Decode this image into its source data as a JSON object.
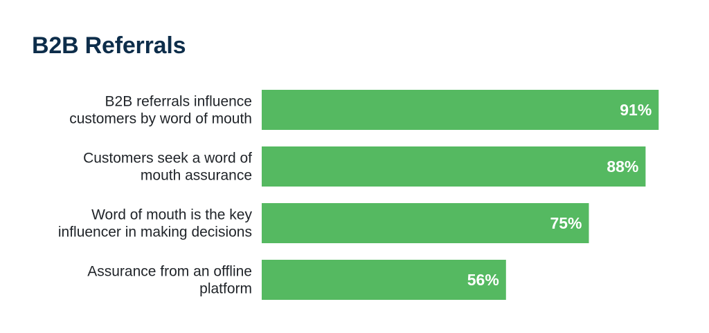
{
  "chart_data": {
    "type": "bar",
    "orientation": "horizontal",
    "title": "B2B Referrals",
    "categories": [
      [
        "B2B referrals influence",
        "customers by word of mouth"
      ],
      [
        "Customers seek a word of",
        "mouth assurance"
      ],
      [
        "Word of mouth is the key",
        "influencer in making decisions"
      ],
      [
        "Assurance from an offline",
        "platform"
      ]
    ],
    "values": [
      91,
      88,
      75,
      56
    ],
    "value_labels": [
      "91%",
      "88%",
      "75%",
      "56%"
    ],
    "unit": "%",
    "xlim": [
      0,
      100
    ],
    "grid": false,
    "legend": "none",
    "bar_color": "#55b961"
  }
}
